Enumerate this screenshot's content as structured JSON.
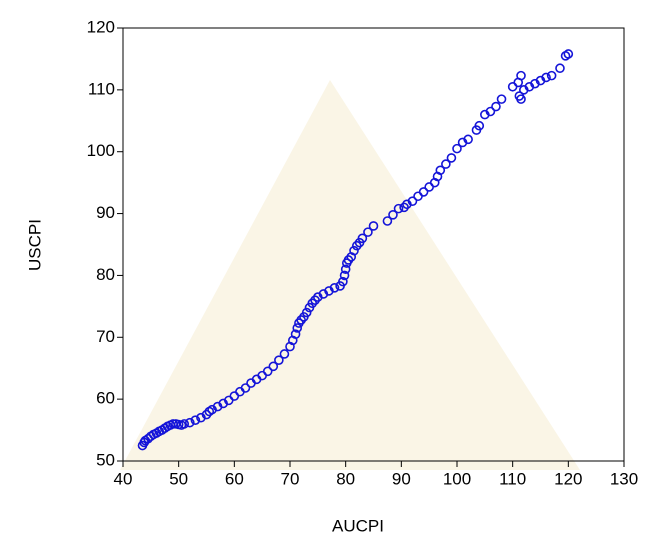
{
  "chart_data": {
    "type": "scatter",
    "xlabel": "AUCPI",
    "ylabel": "USCPI",
    "color": "#1414d8",
    "xlim": [
      40,
      130
    ],
    "ylim": [
      50,
      120
    ],
    "xticks": [
      40,
      50,
      60,
      70,
      80,
      90,
      100,
      110,
      120,
      130
    ],
    "yticks": [
      50,
      60,
      70,
      80,
      90,
      100,
      110,
      120
    ],
    "x": [
      43.5,
      43.8,
      44,
      44.5,
      45,
      45.5,
      46,
      46.5,
      47,
      47.5,
      48,
      48.5,
      49,
      49.5,
      50,
      50.5,
      51,
      52,
      53,
      54,
      55,
      55.5,
      56,
      57,
      58,
      59,
      60,
      61,
      62,
      63,
      64,
      65,
      66,
      67,
      68,
      69,
      70,
      70.5,
      71,
      71.3,
      71.6,
      72,
      72.5,
      73,
      73.5,
      74,
      74.5,
      75,
      76,
      77,
      78,
      79,
      79.5,
      79.8,
      80,
      80.2,
      80.5,
      81,
      81.5,
      82,
      82.5,
      83,
      84,
      85,
      87.5,
      88.5,
      89.5,
      90.5,
      91,
      92,
      93,
      94,
      95,
      96,
      96.5,
      97,
      98,
      99,
      100,
      101,
      102,
      103.5,
      104,
      105,
      106,
      107,
      108,
      110,
      111,
      111.5,
      111.2,
      111.5,
      112,
      113,
      114,
      115,
      116,
      117,
      118.5,
      119.5,
      120
    ],
    "y": [
      52.5,
      53,
      53.3,
      53.6,
      54,
      54.3,
      54.5,
      54.8,
      55,
      55.3,
      55.6,
      55.8,
      56,
      56,
      55.9,
      55.8,
      56,
      56.2,
      56.6,
      57,
      57.5,
      58,
      58.3,
      58.8,
      59.3,
      59.8,
      60.5,
      61.2,
      61.8,
      62.6,
      63.2,
      63.8,
      64.5,
      65.3,
      66.3,
      67.3,
      68.5,
      69.5,
      70.5,
      71.5,
      72.3,
      72.8,
      73.3,
      74,
      74.8,
      75.5,
      76,
      76.5,
      77,
      77.5,
      78,
      78.3,
      79,
      80,
      81,
      82,
      82.5,
      83,
      84,
      84.8,
      85.3,
      86,
      87,
      88,
      88.8,
      89.8,
      90.8,
      91,
      91.5,
      92,
      92.8,
      93.5,
      94.3,
      95,
      96,
      97,
      98,
      99,
      100.5,
      101.5,
      102,
      103.5,
      104.2,
      106,
      106.5,
      107.3,
      108.5,
      110.5,
      111.2,
      112.3,
      109,
      108.5,
      110,
      110.5,
      111,
      111.5,
      112,
      112.3,
      113.5,
      115.5,
      115.8
    ]
  }
}
